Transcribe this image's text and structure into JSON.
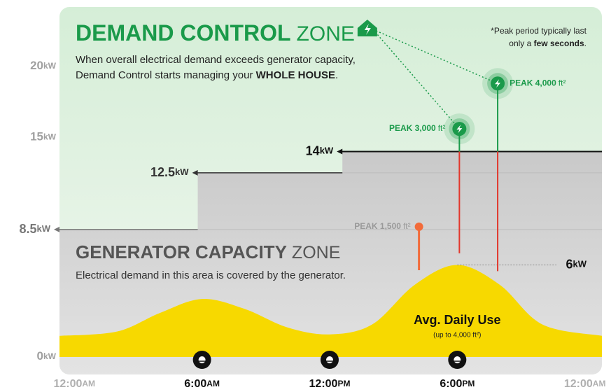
{
  "chart_data": {
    "type": "area",
    "unit": "kW",
    "ylim": [
      0,
      20
    ],
    "yticks": [
      0,
      15,
      20
    ],
    "xlim": [
      -0.7,
      24.8
    ],
    "xticks": [
      {
        "value": 0,
        "label": "12:00",
        "suffix": "AM"
      },
      {
        "value": 6,
        "label": "6:00",
        "suffix": "AM"
      },
      {
        "value": 12,
        "label": "12:00",
        "suffix": "PM"
      },
      {
        "value": 18,
        "label": "6:00",
        "suffix": "PM"
      },
      {
        "value": 24,
        "label": "12:00",
        "suffix": "AM"
      }
    ],
    "demand_zone": {
      "title": "DEMAND CONTROL",
      "title_light": "ZONE",
      "line_1": "When overall electrical demand exceeds generator capacity,",
      "line_2": "Demand Control starts managing your ",
      "line_2_bold": "WHOLE HOUSE",
      "line_2_end": ".",
      "note_1": "*Peak period typically last",
      "note_2": "only a ",
      "note_2_bold": "few seconds",
      "note_2_end": ".",
      "color": "#1a9a4a"
    },
    "generator_zone": {
      "title": "GENERATOR CAPACITY",
      "title_light": "ZONE",
      "text": "Electrical demand in this area is covered by the generator."
    },
    "capacity_steps": {
      "x": [
        -0.7,
        5.8,
        12.6
      ],
      "values": [
        8.5,
        12.5,
        14
      ],
      "colors": [
        "#777777",
        "#333333",
        "#111111"
      ]
    },
    "series": [
      {
        "name": "Avg. Daily Use",
        "note": "(up to 4,000 ft²)",
        "color": "#f7d900",
        "x": [
          -0.7,
          2,
          4,
          6,
          8,
          10,
          12,
          14,
          16,
          18,
          20,
          22,
          24.8
        ],
        "values": [
          1,
          1.3,
          2.6,
          3.6,
          2.9,
          1.6,
          1.1,
          1.8,
          4.6,
          6,
          4.6,
          1.8,
          1
        ]
      }
    ],
    "peak_avg": {
      "x": 18,
      "value": 6
    },
    "peaks": [
      {
        "label": "PEAK 1,500",
        "unit": "ft²",
        "x": 16.2,
        "value": 8.7,
        "color": "#f26b3a"
      },
      {
        "label": "PEAK 3,000",
        "unit": "ft²",
        "x": 18.1,
        "value": 15.6,
        "color": "#e2362b"
      },
      {
        "label": "PEAK 4,000",
        "unit": "ft²",
        "x": 19.9,
        "value": 18.8,
        "color": "#e2362b"
      }
    ]
  }
}
